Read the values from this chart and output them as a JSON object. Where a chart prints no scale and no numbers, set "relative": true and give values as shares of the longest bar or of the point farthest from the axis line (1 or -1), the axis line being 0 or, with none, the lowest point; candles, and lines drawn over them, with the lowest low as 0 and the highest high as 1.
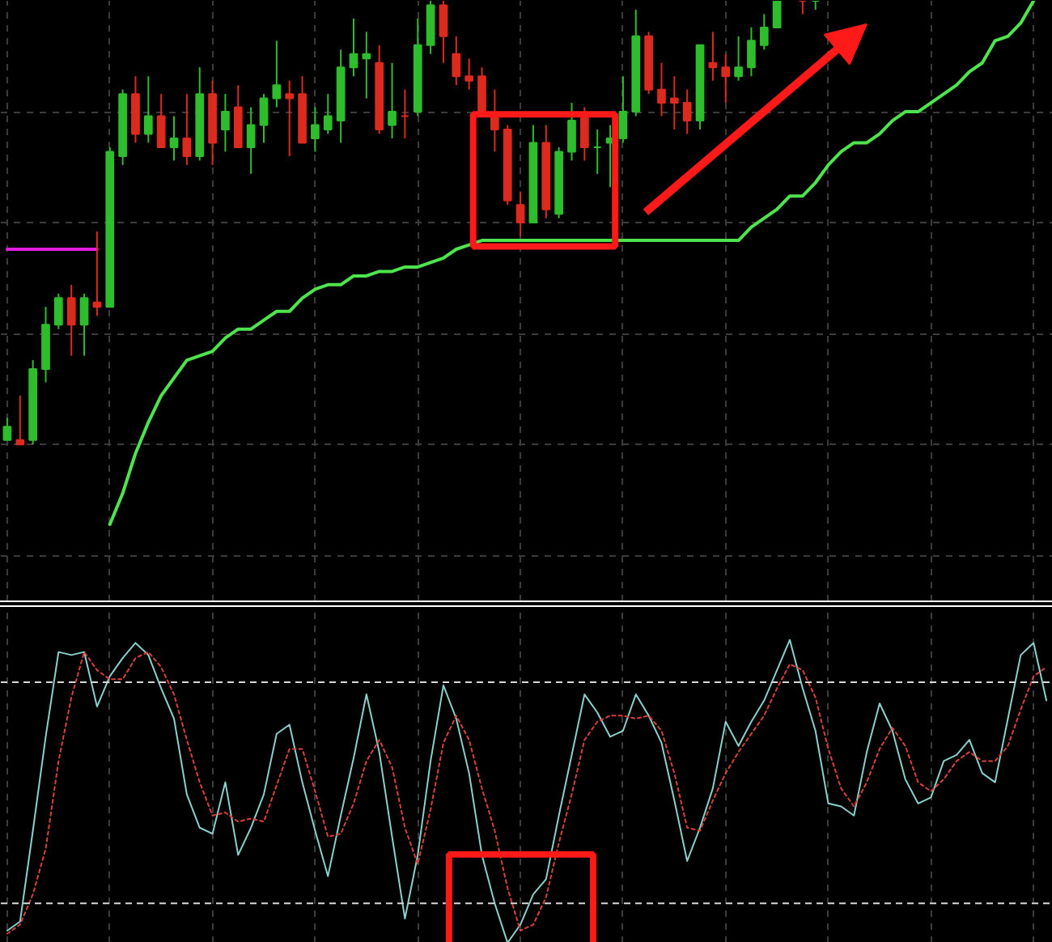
{
  "chart_data": [
    {
      "type": "candlestick",
      "relative": true,
      "grid": true,
      "categories": [
        null,
        null,
        null,
        null,
        null,
        null,
        null,
        null,
        null,
        null,
        null,
        null,
        null,
        null,
        null,
        null,
        null,
        null,
        null,
        null,
        null,
        null,
        null,
        null,
        null,
        null,
        null,
        null,
        null,
        null,
        null,
        null,
        null,
        null,
        null,
        null,
        null,
        null,
        null,
        null,
        null,
        null,
        null,
        null,
        null,
        null,
        null,
        null,
        null,
        null,
        null,
        null,
        null,
        null,
        null,
        null,
        null,
        null,
        null,
        null,
        null,
        null,
        null,
        null,
        null,
        null,
        null,
        null,
        null,
        null,
        null,
        null,
        null,
        null,
        null,
        null,
        null,
        null,
        null,
        null,
        null,
        null
      ],
      "ohlc": [
        [
          0.01,
          0.06,
          0.01,
          0.04
        ],
        [
          0.01,
          0.11,
          0.0,
          0.0
        ],
        [
          0.01,
          0.19,
          0.0,
          0.17
        ],
        [
          0.17,
          0.31,
          0.14,
          0.27
        ],
        [
          0.27,
          0.34,
          0.26,
          0.33
        ],
        [
          0.33,
          0.36,
          0.2,
          0.27
        ],
        [
          0.27,
          0.34,
          0.2,
          0.33
        ],
        [
          0.32,
          0.48,
          0.29,
          0.31
        ],
        [
          0.31,
          0.67,
          0.31,
          0.66
        ],
        [
          0.65,
          0.8,
          0.63,
          0.79
        ],
        [
          0.79,
          0.83,
          0.68,
          0.7
        ],
        [
          0.7,
          0.83,
          0.68,
          0.74
        ],
        [
          0.74,
          0.79,
          0.67,
          0.67
        ],
        [
          0.67,
          0.74,
          0.64,
          0.69
        ],
        [
          0.69,
          0.79,
          0.63,
          0.65
        ],
        [
          0.65,
          0.85,
          0.64,
          0.79
        ],
        [
          0.79,
          0.82,
          0.63,
          0.68
        ],
        [
          0.71,
          0.79,
          0.66,
          0.75
        ],
        [
          0.76,
          0.81,
          0.67,
          0.67
        ],
        [
          0.67,
          0.76,
          0.61,
          0.72
        ],
        [
          0.72,
          0.79,
          0.68,
          0.78
        ],
        [
          0.78,
          0.91,
          0.76,
          0.81
        ],
        [
          0.79,
          0.82,
          0.65,
          0.78
        ],
        [
          0.79,
          0.83,
          0.68,
          0.68
        ],
        [
          0.69,
          0.76,
          0.66,
          0.72
        ],
        [
          0.71,
          0.79,
          0.7,
          0.74
        ],
        [
          0.73,
          0.89,
          0.68,
          0.85
        ],
        [
          0.85,
          0.96,
          0.83,
          0.88
        ],
        [
          0.87,
          0.93,
          0.78,
          0.88
        ],
        [
          0.86,
          0.9,
          0.7,
          0.71
        ],
        [
          0.72,
          0.86,
          0.69,
          0.75
        ],
        [
          0.74,
          0.8,
          0.69,
          0.74
        ],
        [
          0.75,
          0.96,
          0.74,
          0.9
        ],
        [
          0.9,
          1.0,
          0.88,
          0.99
        ],
        [
          0.99,
          1.0,
          0.86,
          0.92
        ],
        [
          0.88,
          0.92,
          0.81,
          0.83
        ],
        [
          0.83,
          0.87,
          0.8,
          0.82
        ],
        [
          0.83,
          0.85,
          0.74,
          0.75
        ],
        [
          0.74,
          0.8,
          0.66,
          0.71
        ],
        [
          0.71,
          0.72,
          0.54,
          0.55
        ],
        [
          0.54,
          0.57,
          0.47,
          0.5
        ],
        [
          0.5,
          0.72,
          0.5,
          0.68
        ],
        [
          0.68,
          0.72,
          0.51,
          0.53
        ],
        [
          0.52,
          0.67,
          0.51,
          0.66
        ],
        [
          0.66,
          0.77,
          0.64,
          0.73
        ],
        [
          0.74,
          0.76,
          0.64,
          0.67
        ],
        [
          0.67,
          0.71,
          0.61,
          0.67
        ],
        [
          0.68,
          0.72,
          0.58,
          0.69
        ],
        [
          0.69,
          0.83,
          0.68,
          0.75
        ],
        [
          0.75,
          0.98,
          0.74,
          0.92
        ],
        [
          0.92,
          0.93,
          0.79,
          0.8
        ],
        [
          0.8,
          0.86,
          0.74,
          0.77
        ],
        [
          0.78,
          0.83,
          0.71,
          0.77
        ],
        [
          0.77,
          0.8,
          0.7,
          0.73
        ],
        [
          0.73,
          0.9,
          0.71,
          0.9
        ],
        [
          0.86,
          0.93,
          0.82,
          0.85
        ],
        [
          0.85,
          0.88,
          0.77,
          0.83
        ],
        [
          0.83,
          0.92,
          0.82,
          0.85
        ],
        [
          0.85,
          0.94,
          0.83,
          0.91
        ],
        [
          0.9,
          0.97,
          0.89,
          0.94
        ],
        [
          0.94,
          1.0,
          0.94,
          1.0
        ],
        null,
        [
          1.0,
          1.0,
          0.97,
          1.0
        ],
        [
          1.0,
          1.0,
          0.98,
          1.0
        ],
        null,
        null,
        null,
        null,
        null,
        null,
        null,
        null,
        null,
        null,
        null,
        null,
        null,
        null,
        null,
        null,
        null,
        null
      ],
      "colors": [
        "#2dbd2d",
        "#dd2a1e",
        "#2dbd2d",
        "#2dbd2d",
        "#2dbd2d",
        "#dd2a1e",
        "#2dbd2d",
        "#dd2a1e",
        "#2dbd2d",
        "#2dbd2d",
        "#dd2a1e",
        "#2dbd2d",
        "#dd2a1e",
        "#2dbd2d",
        "#dd2a1e",
        "#2dbd2d",
        "#dd2a1e",
        "#2dbd2d",
        "#dd2a1e",
        "#2dbd2d",
        "#2dbd2d",
        "#2dbd2d",
        "#dd2a1e",
        "#dd2a1e",
        "#2dbd2d",
        "#2dbd2d",
        "#2dbd2d",
        "#2dbd2d",
        "#2dbd2d",
        "#dd2a1e",
        "#2dbd2d",
        "#dd2a1e",
        "#2dbd2d",
        "#2dbd2d",
        "#dd2a1e",
        "#dd2a1e",
        "#dd2a1e",
        "#dd2a1e",
        "#dd2a1e",
        "#dd2a1e",
        "#dd2a1e",
        "#2dbd2d",
        "#dd2a1e",
        "#2dbd2d",
        "#2dbd2d",
        "#dd2a1e",
        "#2dbd2d",
        "#2dbd2d",
        "#2dbd2d",
        "#2dbd2d",
        "#dd2a1e",
        "#dd2a1e",
        "#dd2a1e",
        "#dd2a1e",
        "#2dbd2d",
        "#dd2a1e",
        "#dd2a1e",
        "#2dbd2d",
        "#2dbd2d",
        "#2dbd2d",
        "#2dbd2d",
        null,
        "#dd2a1e",
        "#2dbd2d",
        null,
        null,
        null,
        null,
        null,
        null,
        null,
        null,
        null,
        null,
        null,
        null,
        null,
        null,
        null,
        null,
        null,
        null
      ],
      "series": [
        {
          "type": "line",
          "color": "#4ee44e",
          "values": [
            null,
            null,
            null,
            null,
            null,
            null,
            null,
            null,
            -0.18,
            -0.11,
            -0.02,
            0.05,
            0.11,
            0.15,
            0.19,
            0.2,
            0.21,
            0.24,
            0.26,
            0.26,
            0.28,
            0.3,
            0.3,
            0.33,
            0.35,
            0.36,
            0.36,
            0.38,
            0.38,
            0.39,
            0.39,
            0.4,
            0.4,
            0.41,
            0.42,
            0.44,
            0.45,
            0.46,
            0.46,
            0.46,
            0.46,
            0.46,
            0.46,
            0.46,
            0.46,
            0.46,
            0.46,
            0.46,
            0.46,
            0.46,
            0.46,
            0.46,
            0.46,
            0.46,
            0.46,
            0.46,
            0.46,
            0.46,
            0.49,
            0.51,
            0.53,
            0.56,
            0.56,
            0.59,
            0.63,
            0.66,
            0.68,
            0.68,
            0.7,
            0.73,
            0.75,
            0.75,
            0.77,
            0.79,
            0.81,
            0.84,
            0.86,
            0.91,
            0.92,
            0.95,
            1.0,
            null
          ]
        },
        {
          "type": "line",
          "color": "#e31ee3",
          "values": [
            0.44,
            0.44,
            0.44,
            0.44,
            0.44,
            0.44,
            0.44,
            0.44,
            null,
            null,
            null,
            null,
            null,
            null,
            null,
            null,
            null,
            null,
            null,
            null,
            null,
            null,
            null,
            null,
            null,
            null,
            null,
            null,
            null,
            null,
            null,
            null,
            null,
            null,
            null,
            null,
            null,
            null,
            null,
            null,
            null,
            null,
            null,
            null,
            null,
            null,
            null,
            null,
            null,
            null,
            null,
            null,
            null,
            null,
            null,
            null,
            null,
            null,
            null,
            null,
            null,
            null,
            null,
            null,
            null,
            null,
            null,
            null,
            null,
            null,
            null,
            null,
            null,
            null,
            null,
            null,
            null,
            null,
            null,
            null,
            null,
            null
          ]
        }
      ]
    },
    {
      "type": "line",
      "relative": true,
      "grid": "x",
      "categories": [
        null,
        null,
        null,
        null,
        null,
        null,
        null,
        null,
        null,
        null,
        null,
        null,
        null,
        null,
        null,
        null,
        null,
        null,
        null,
        null,
        null,
        null,
        null,
        null,
        null,
        null,
        null,
        null,
        null,
        null,
        null,
        null,
        null,
        null,
        null,
        null,
        null,
        null,
        null,
        null,
        null,
        null,
        null,
        null,
        null,
        null,
        null,
        null,
        null,
        null,
        null,
        null,
        null,
        null,
        null,
        null,
        null,
        null,
        null,
        null,
        null,
        null,
        null,
        null,
        null,
        null,
        null,
        null,
        null,
        null,
        null,
        null,
        null,
        null,
        null,
        null,
        null,
        null,
        null,
        null,
        null,
        null
      ],
      "series": [
        {
          "color": "#8ad0cc",
          "line_style": "solid",
          "values": [
            0.04,
            0.07,
            0.37,
            0.68,
            0.96,
            0.95,
            0.96,
            0.78,
            0.88,
            0.94,
            0.99,
            0.95,
            0.84,
            0.74,
            0.49,
            0.38,
            0.36,
            0.53,
            0.29,
            0.38,
            0.49,
            0.69,
            0.72,
            0.53,
            0.37,
            0.22,
            0.42,
            0.61,
            0.82,
            0.63,
            0.35,
            0.08,
            0.29,
            0.6,
            0.85,
            0.74,
            0.56,
            0.29,
            0.13,
            0.0,
            0.06,
            0.16,
            0.21,
            0.42,
            0.62,
            0.82,
            0.76,
            0.68,
            0.7,
            0.82,
            0.75,
            0.66,
            0.47,
            0.27,
            0.38,
            0.51,
            0.73,
            0.65,
            0.73,
            0.8,
            0.9,
            1.0,
            0.84,
            0.7,
            0.46,
            0.45,
            0.42,
            0.63,
            0.79,
            0.7,
            0.54,
            0.46,
            0.48,
            0.6,
            0.62,
            0.67,
            0.56,
            0.53,
            0.74,
            0.95,
            0.99,
            0.8
          ]
        },
        {
          "color": "#d9413a",
          "line_style": "dotted",
          "values": [
            0.03,
            0.06,
            0.16,
            0.31,
            0.6,
            0.81,
            0.96,
            0.9,
            0.87,
            0.87,
            0.94,
            0.96,
            0.91,
            0.82,
            0.67,
            0.53,
            0.42,
            0.43,
            0.4,
            0.41,
            0.4,
            0.52,
            0.64,
            0.64,
            0.5,
            0.35,
            0.36,
            0.46,
            0.6,
            0.67,
            0.58,
            0.38,
            0.26,
            0.44,
            0.66,
            0.75,
            0.67,
            0.51,
            0.37,
            0.18,
            0.04,
            0.06,
            0.15,
            0.33,
            0.49,
            0.67,
            0.73,
            0.75,
            0.75,
            0.74,
            0.75,
            0.7,
            0.56,
            0.38,
            0.37,
            0.47,
            0.56,
            0.63,
            0.69,
            0.75,
            0.84,
            0.92,
            0.9,
            0.81,
            0.64,
            0.51,
            0.45,
            0.53,
            0.64,
            0.71,
            0.65,
            0.53,
            0.5,
            0.54,
            0.6,
            0.63,
            0.6,
            0.6,
            0.65,
            0.77,
            0.88,
            0.91
          ]
        }
      ],
      "ref_lines": [
        {
          "axis": "y",
          "value": 0.86,
          "color": "#d8d8d8",
          "line_style": "dashed"
        },
        {
          "axis": "y",
          "value": 0.13,
          "color": "#d8d8d8",
          "line_style": "dashed"
        }
      ]
    }
  ]
}
